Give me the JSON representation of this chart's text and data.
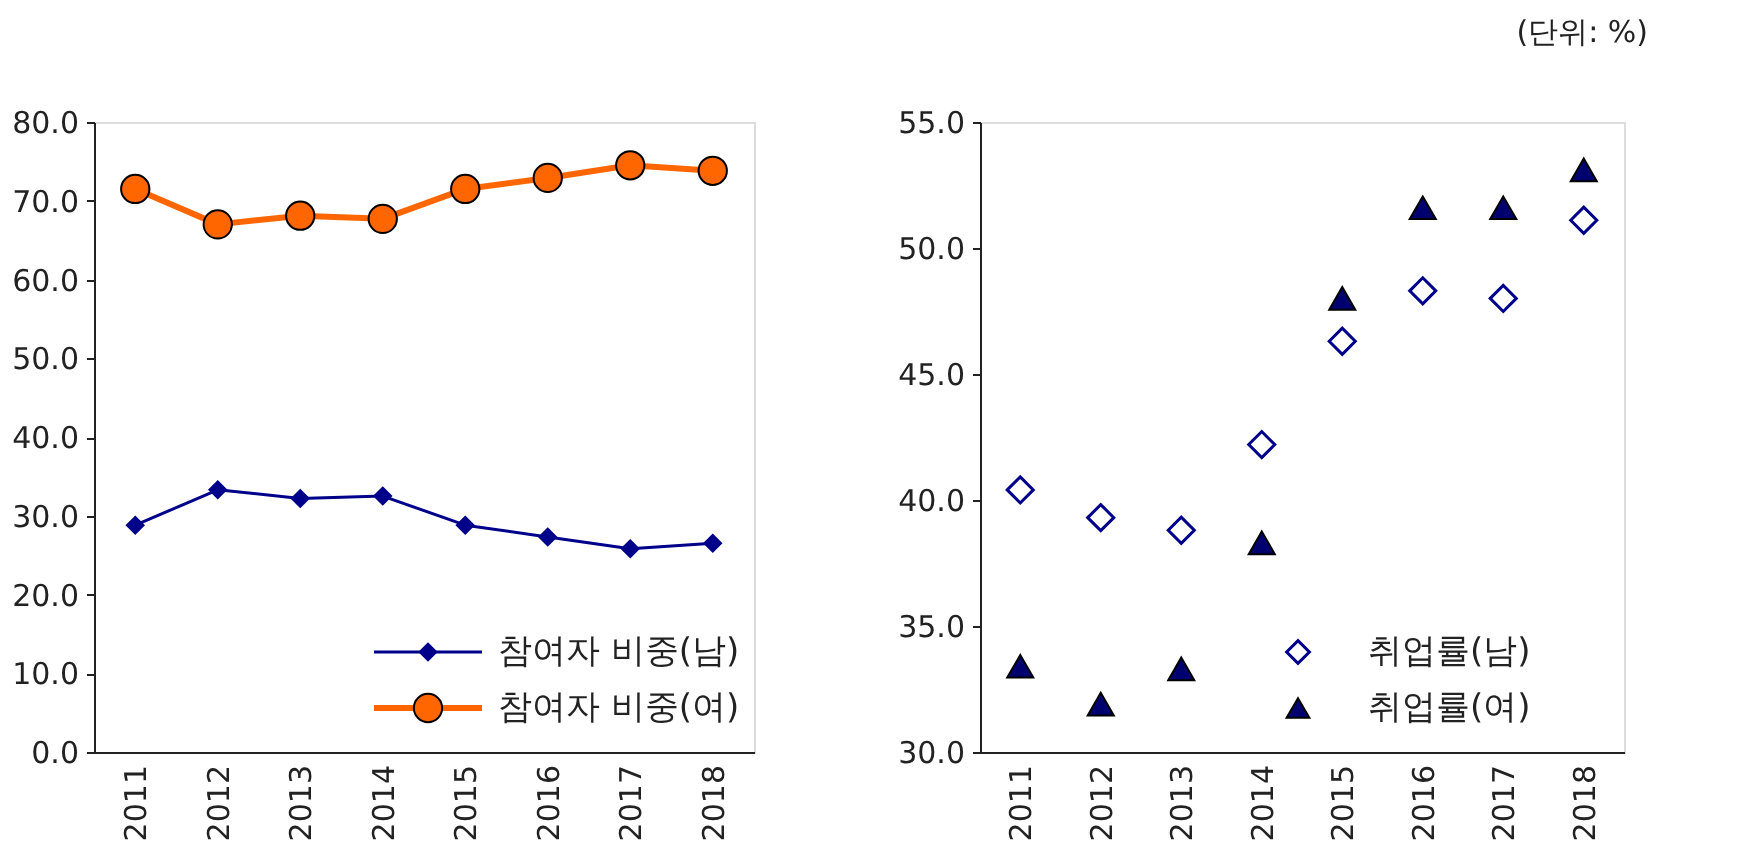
{
  "chart_data": [
    {
      "type": "line",
      "categories": [
        "2011",
        "2012",
        "2013",
        "2014",
        "2015",
        "2016",
        "2017",
        "2018"
      ],
      "series": [
        {
          "name": "참여자 비중(남)",
          "color": "#00008b",
          "marker": "diamond",
          "values": [
            28.8,
            33.3,
            32.2,
            32.5,
            28.8,
            27.3,
            25.8,
            26.5
          ]
        },
        {
          "name": "참여자 비중(여)",
          "color": "#ff6600",
          "marker": "circle",
          "values": [
            71.5,
            67.0,
            68.1,
            67.7,
            71.5,
            72.9,
            74.5,
            73.8
          ]
        }
      ],
      "ylim": [
        0,
        80
      ],
      "yticks": [
        {
          "value": 0,
          "label": "0.0"
        },
        {
          "value": 10,
          "label": "10.0"
        },
        {
          "value": 20,
          "label": "20.0"
        },
        {
          "value": 30,
          "label": "30.0"
        },
        {
          "value": 40,
          "label": "40.0"
        },
        {
          "value": 50,
          "label": "50.0"
        },
        {
          "value": 60,
          "label": "60.0"
        },
        {
          "value": 70,
          "label": "70.0"
        },
        {
          "value": 80,
          "label": "80.0"
        }
      ],
      "grid": false,
      "legend": "bottom right"
    },
    {
      "type": "scatter",
      "categories": [
        "2011",
        "2012",
        "2013",
        "2014",
        "2015",
        "2016",
        "2017",
        "2018"
      ],
      "series": [
        {
          "name": "취업률(남)",
          "color": "#00008b",
          "marker": "diamond",
          "values": [
            40.4,
            39.3,
            38.8,
            42.2,
            46.3,
            48.3,
            48.0,
            51.1
          ]
        },
        {
          "name": "취업률(여)",
          "color": "#00006e",
          "marker": "triangle",
          "values": [
            33.4,
            31.9,
            33.3,
            38.3,
            48.0,
            51.6,
            51.6,
            53.1
          ]
        }
      ],
      "ylim": [
        30,
        55
      ],
      "yticks": [
        {
          "value": 30,
          "label": "30.0"
        },
        {
          "value": 35,
          "label": "35.0"
        },
        {
          "value": 40,
          "label": "40.0"
        },
        {
          "value": 45,
          "label": "45.0"
        },
        {
          "value": 50,
          "label": "50.0"
        },
        {
          "value": 55,
          "label": "55.0"
        }
      ],
      "grid": false,
      "legend": "bottom right",
      "annotations": [
        "(단위: %)"
      ]
    }
  ]
}
